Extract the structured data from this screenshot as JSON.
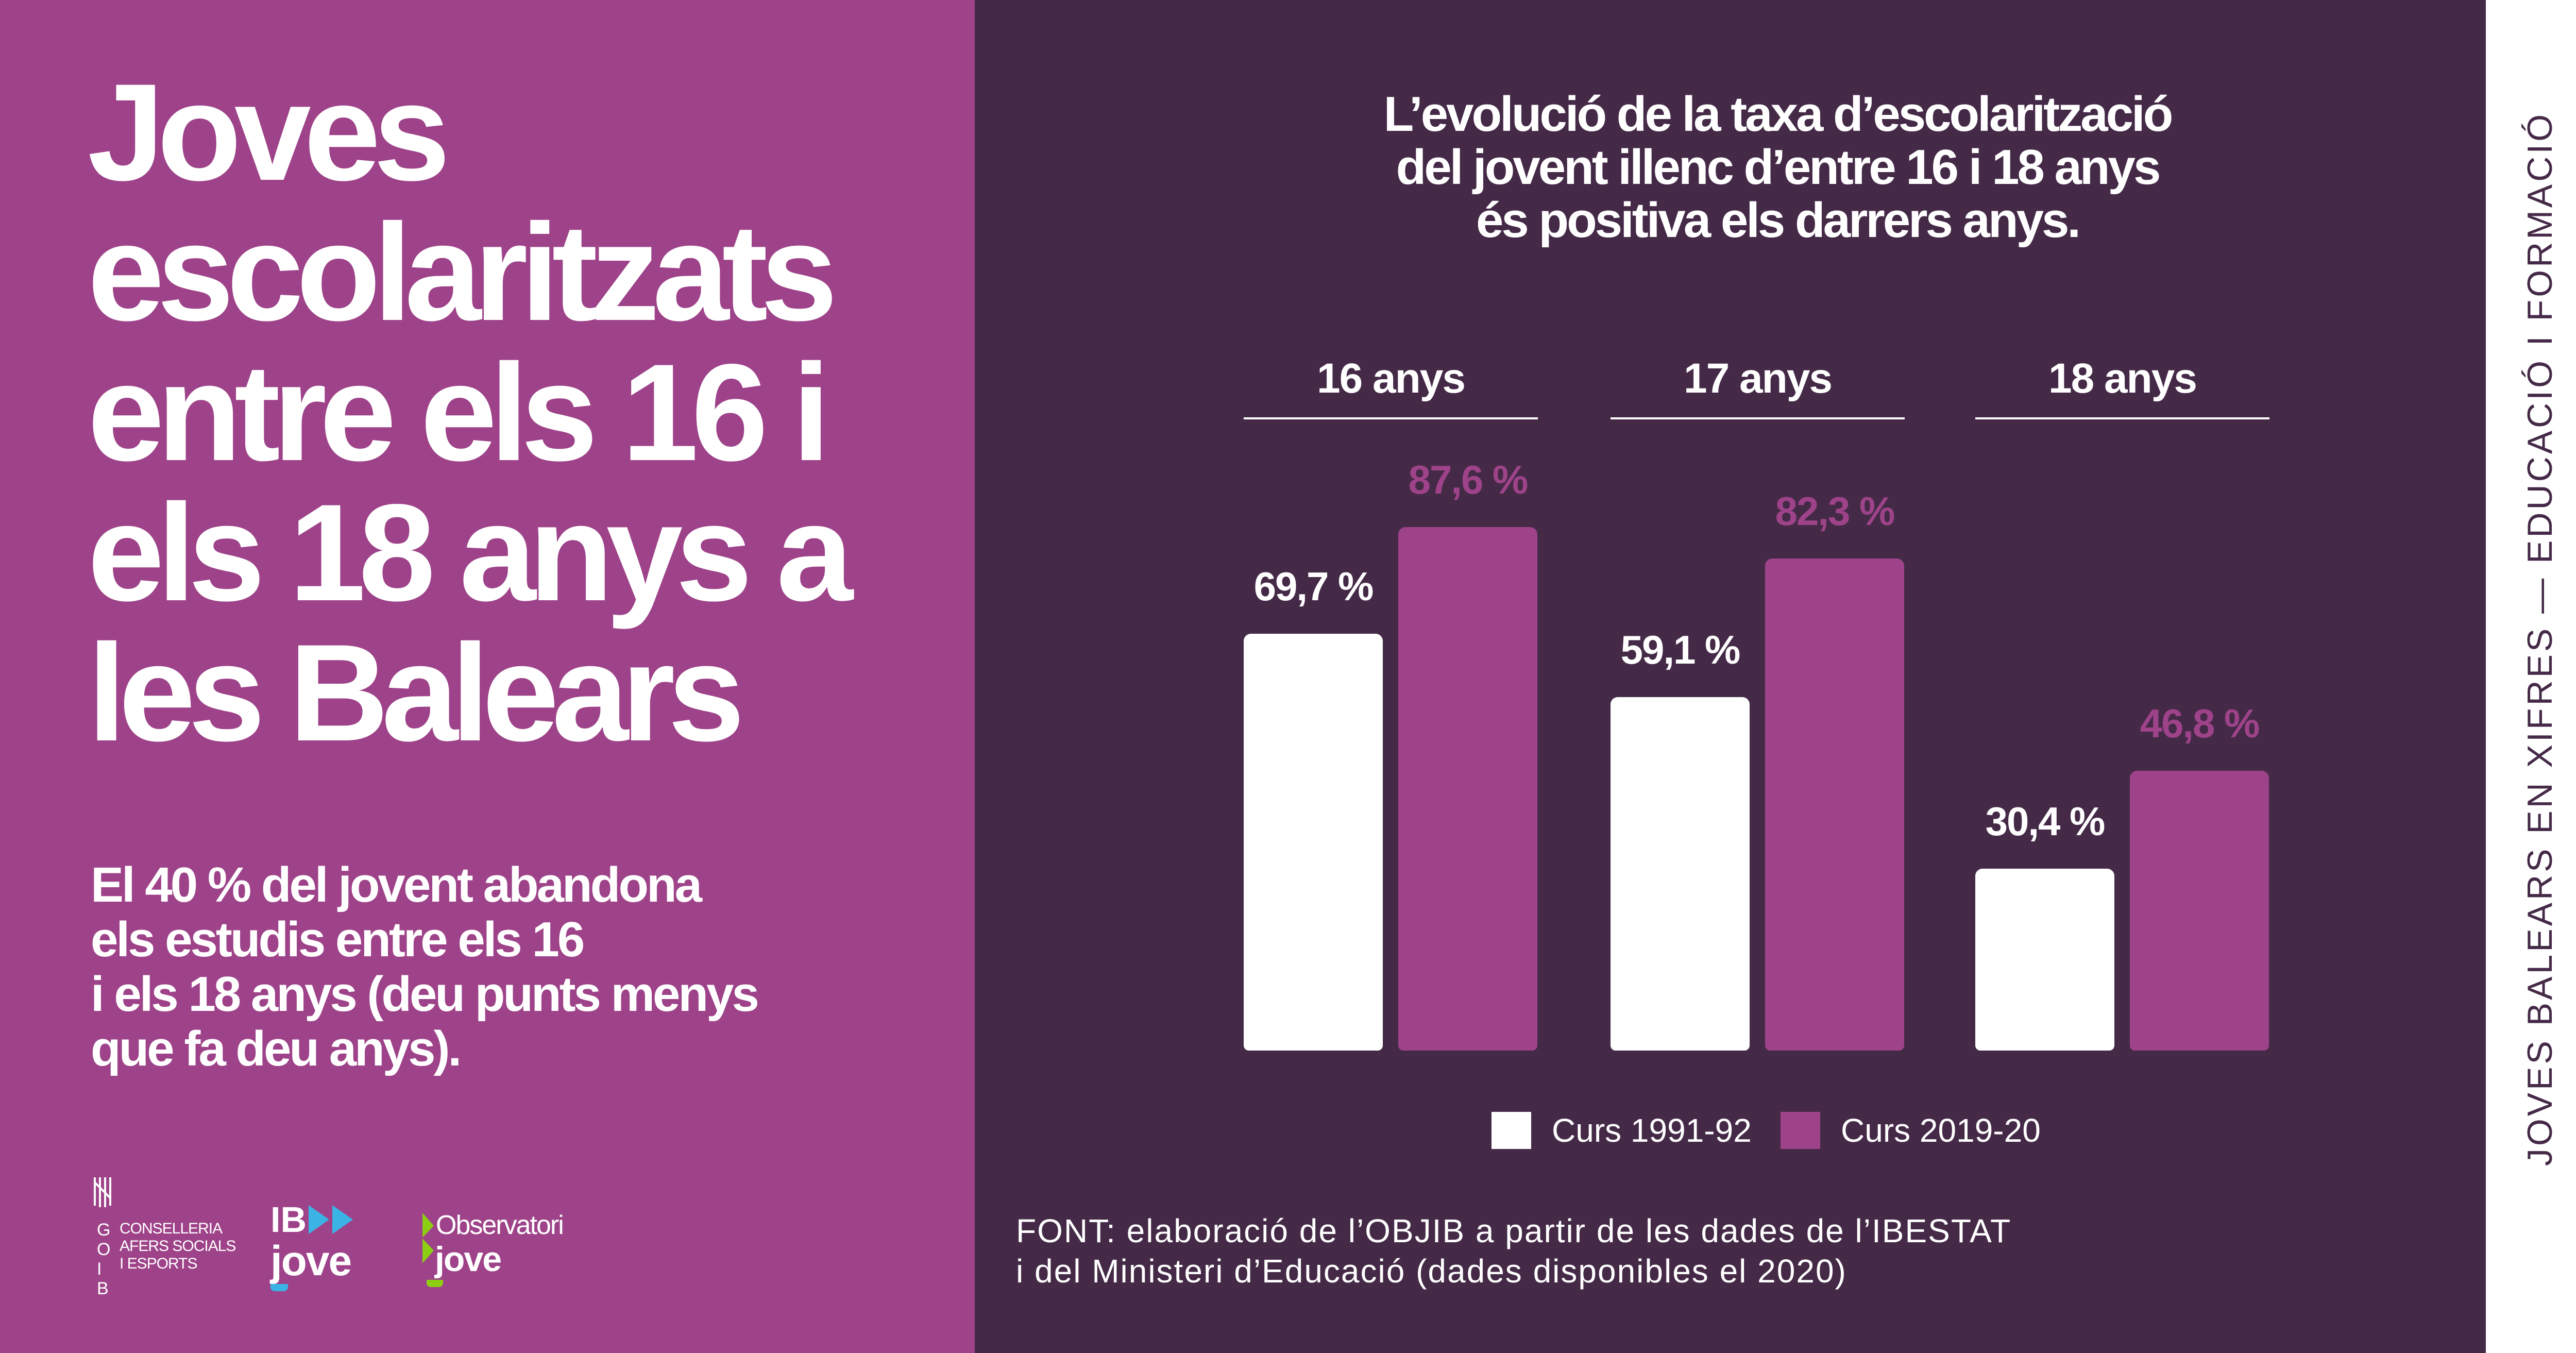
{
  "left": {
    "title_lines": [
      "Joves",
      "escolaritzats",
      "entre els 16 i",
      "els 18 anys a",
      "les Balears"
    ],
    "subtitle_lines": [
      "El 40 % del jovent abandona",
      "els estudis entre els 16",
      "i els 18 anys (deu punts menys",
      "que fa deu anys)."
    ],
    "logos": {
      "goib": {
        "letters": "GOIB",
        "lines": [
          "CONSELLERIA",
          "AFERS SOCIALS",
          "I ESPORTS"
        ]
      },
      "ibjove": {
        "top": "IB",
        "bottom": "jove",
        "accent": "#3bb3e4"
      },
      "observatori": {
        "top": "Observatori",
        "bottom": "jove",
        "accent": "#8ccf12"
      }
    }
  },
  "chart_data": {
    "type": "bar",
    "title": "L’evolució de la taxa d’escolarització del jovent illenc d’entre 16 i 18 anys és positiva els darrers anys.",
    "title_lines": [
      "L’evolució de la taxa d’escolarització",
      "del jovent illenc d’entre 16 i 18 anys",
      "és positiva els darrers anys."
    ],
    "categories": [
      "16 anys",
      "17 anys",
      "18 anys"
    ],
    "series": [
      {
        "name": "Curs 1991-92",
        "values": [
          69.7,
          59.1,
          30.4
        ],
        "labels": [
          "69,7 %",
          "59,1 %",
          "30,4 %"
        ],
        "color": "#ffffff",
        "label_color": "#ffffff"
      },
      {
        "name": "Curs 2019-20",
        "values": [
          87.6,
          82.3,
          46.8
        ],
        "labels": [
          "87,6 %",
          "82,3 %",
          "46,8 %"
        ],
        "color": "#9e4389",
        "label_color": "#9e4389"
      }
    ],
    "ylim": [
      0,
      100
    ],
    "grid": false,
    "legend": "bottom"
  },
  "source_lines": [
    "FONT: elaboració de l’OBJIB a partir de les dades de l’IBESTAT",
    "i del Ministeri d’Educació (dades disponibles el 2020)"
  ],
  "side_label": "JOVES BALEARS EN XIFRES — EDUCACIÓ I FORMACIÓ",
  "colors": {
    "left_bg": "#9e4389",
    "right_bg": "#452a48"
  }
}
